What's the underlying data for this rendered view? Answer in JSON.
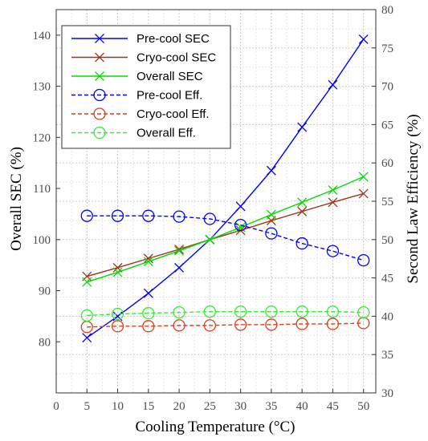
{
  "chart_data": {
    "type": "line",
    "xlabel": "Cooling Temperature (°C)",
    "ylabel_left": "Overall SEC (%)",
    "ylabel_right": "Second Law Efficiency (%)",
    "xlim": [
      0,
      52
    ],
    "ylim_left": [
      70,
      145
    ],
    "ylim_right": [
      30,
      80
    ],
    "x_ticks": [
      0,
      5,
      10,
      15,
      20,
      25,
      30,
      35,
      40,
      45,
      50
    ],
    "y_left_ticks": [
      80,
      90,
      100,
      110,
      120,
      130,
      140
    ],
    "y_right_ticks": [
      30,
      35,
      40,
      45,
      50,
      55,
      60,
      65,
      70,
      75,
      80
    ],
    "grid": true,
    "legend_position": "top-left",
    "x": [
      5,
      10,
      15,
      20,
      25,
      30,
      35,
      40,
      45,
      50
    ],
    "series": [
      {
        "name": "Pre-cool SEC",
        "axis": "left",
        "color": "#0000ff",
        "marker": "x",
        "dash": false,
        "values": [
          80.8,
          85.0,
          89.5,
          94.5,
          100.0,
          106.5,
          113.5,
          122.0,
          130.3,
          139.2
        ]
      },
      {
        "name": "Cryo-cool SEC",
        "axis": "left",
        "color": "#a0341c",
        "marker": "x",
        "dash": false,
        "values": [
          92.8,
          94.5,
          96.3,
          98.1,
          100.0,
          101.8,
          103.7,
          105.5,
          107.3,
          109.0
        ]
      },
      {
        "name": "Overall SEC",
        "axis": "left",
        "color": "#00dd00",
        "marker": "x",
        "dash": false,
        "values": [
          91.7,
          93.6,
          95.7,
          97.8,
          100.0,
          102.4,
          104.9,
          107.3,
          109.7,
          112.3
        ]
      },
      {
        "name": "Pre-cool Eff.",
        "axis": "right",
        "color": "#0000ff",
        "marker": "o",
        "dash": true,
        "values": [
          53.1,
          53.1,
          53.1,
          53.0,
          52.7,
          51.9,
          50.8,
          49.5,
          48.5,
          47.3
        ]
      },
      {
        "name": "Cryo-cool Eff.",
        "axis": "right",
        "color": "#e03c1c",
        "marker": "o",
        "dash": true,
        "values": [
          38.6,
          38.7,
          38.7,
          38.8,
          38.8,
          38.9,
          38.9,
          39.0,
          39.0,
          39.1
        ]
      },
      {
        "name": "Overall Eff.",
        "axis": "right",
        "color": "#33ee33",
        "marker": "o",
        "dash": true,
        "values": [
          40.1,
          40.3,
          40.4,
          40.5,
          40.6,
          40.6,
          40.6,
          40.6,
          40.6,
          40.5
        ]
      }
    ]
  }
}
